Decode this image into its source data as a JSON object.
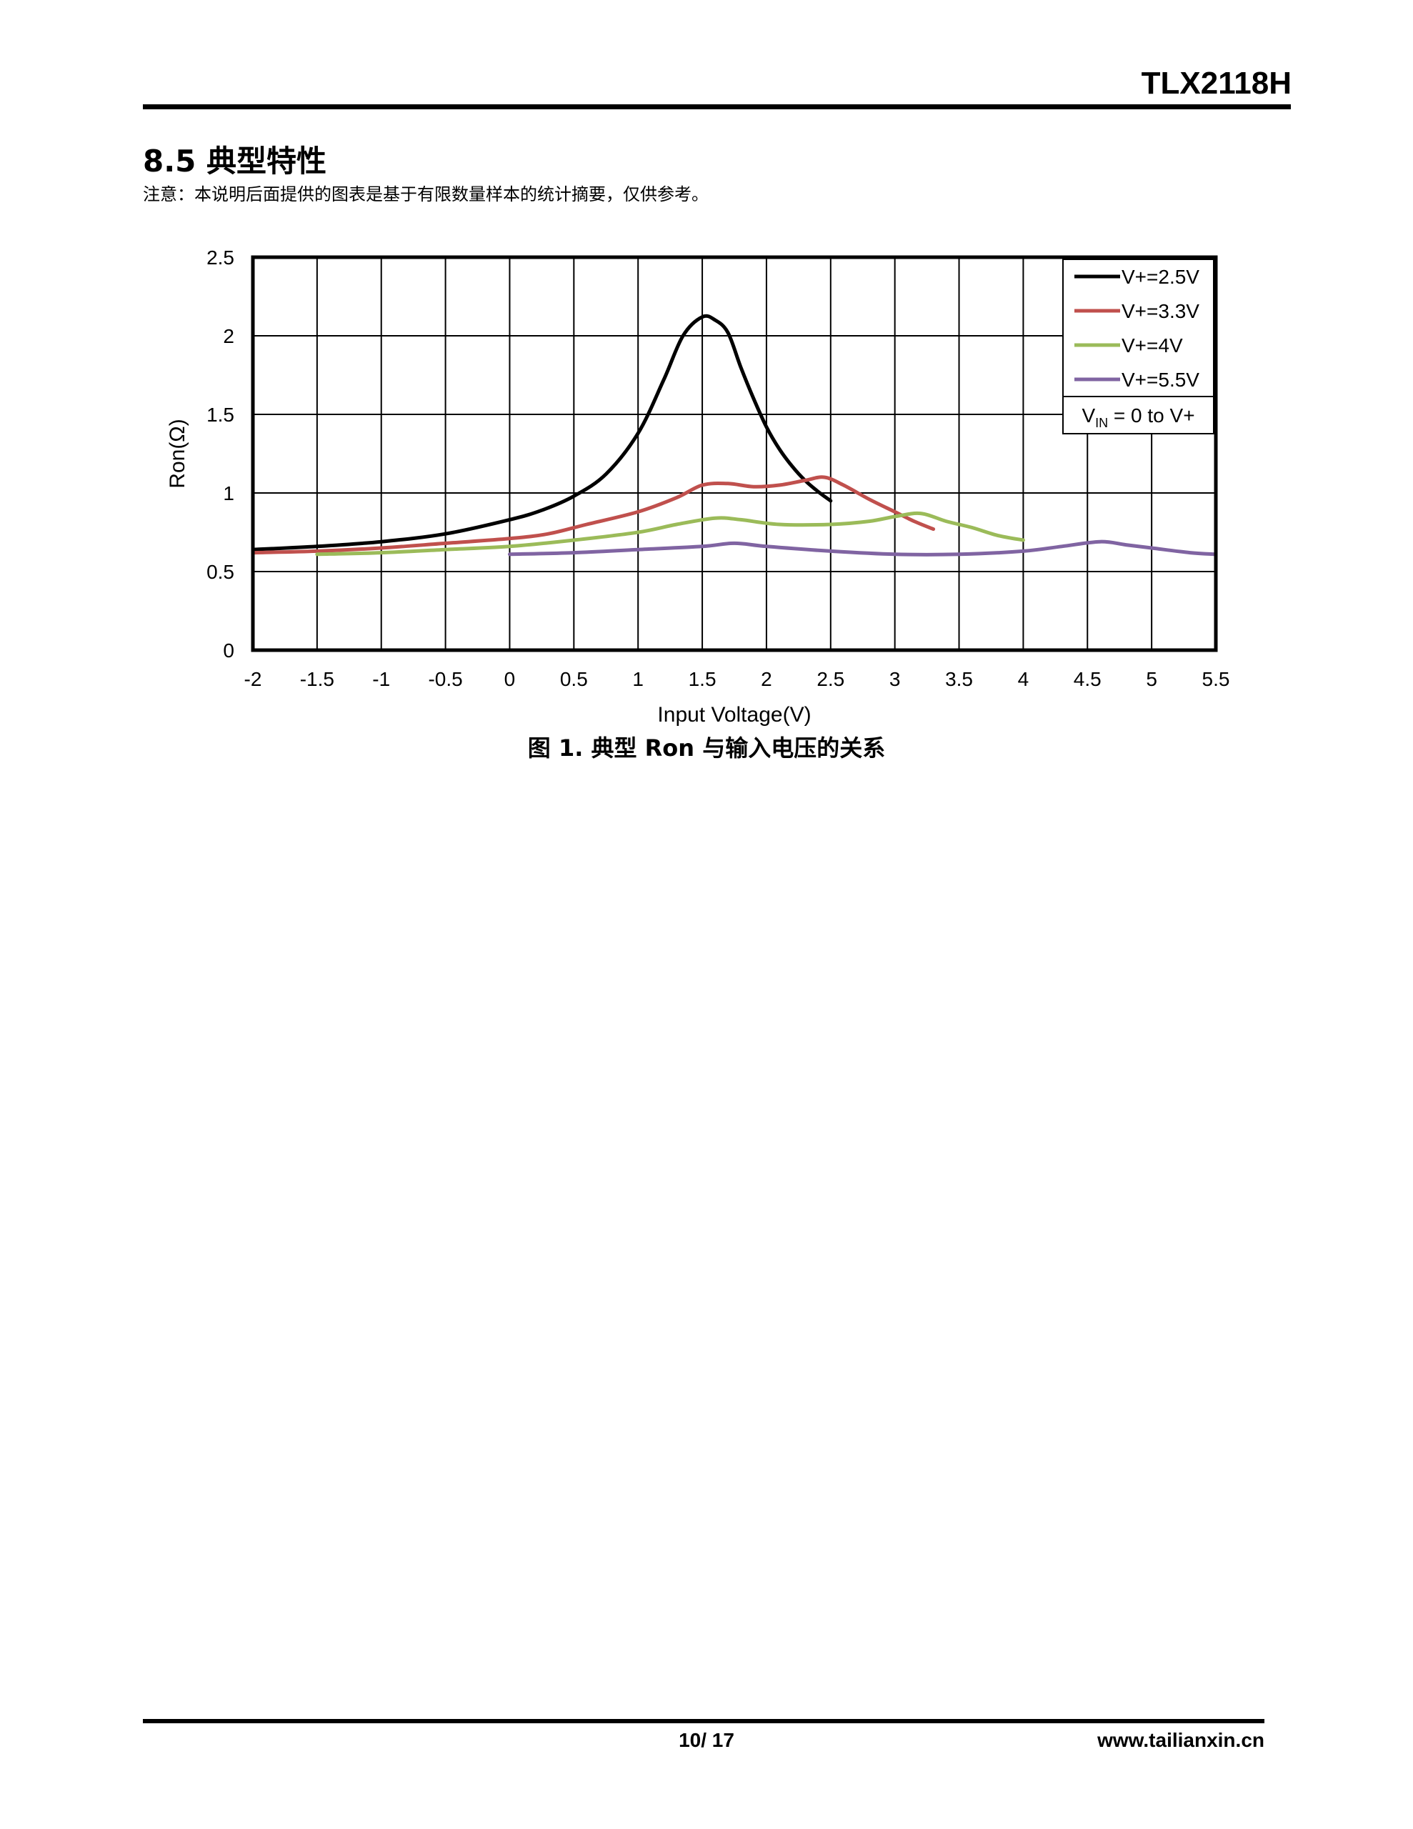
{
  "header": {
    "doc_title": "TLX2118H"
  },
  "section": {
    "number": "8.5",
    "title": "典型特性",
    "note": "注意：本说明后面提供的图表是基于有限数量样本的统计摘要，仅供参考。"
  },
  "chart_data": {
    "type": "line",
    "xlabel": "Input Voltage(V)",
    "ylabel": "Ron(Ω)",
    "xlim": [
      -2,
      5.5
    ],
    "ylim": [
      0,
      2.5
    ],
    "xticks": [
      "-2",
      "-1.5",
      "-1",
      "-0.5",
      "0",
      "0.5",
      "1",
      "1.5",
      "2",
      "2.5",
      "3",
      "3.5",
      "4",
      "4.5",
      "5",
      "5.5"
    ],
    "yticks": [
      "0",
      "0.5",
      "1",
      "1.5",
      "2",
      "2.5"
    ],
    "grid": true,
    "legend_position": "top-right",
    "annotation": {
      "main": "V",
      "sub": "IN",
      "rest": " = 0 to V+"
    },
    "series": [
      {
        "name": "V+=2.5V",
        "color": "#000000",
        "points": [
          [
            -2,
            0.64
          ],
          [
            -1.5,
            0.66
          ],
          [
            -1,
            0.69
          ],
          [
            -0.5,
            0.74
          ],
          [
            0,
            0.83
          ],
          [
            0.25,
            0.89
          ],
          [
            0.5,
            0.98
          ],
          [
            0.75,
            1.12
          ],
          [
            1,
            1.38
          ],
          [
            1.2,
            1.72
          ],
          [
            1.35,
            2.0
          ],
          [
            1.5,
            2.12
          ],
          [
            1.6,
            2.1
          ],
          [
            1.7,
            2.02
          ],
          [
            1.8,
            1.8
          ],
          [
            1.9,
            1.6
          ],
          [
            2.0,
            1.42
          ],
          [
            2.1,
            1.28
          ],
          [
            2.2,
            1.17
          ],
          [
            2.3,
            1.08
          ],
          [
            2.4,
            1.01
          ],
          [
            2.5,
            0.95
          ]
        ]
      },
      {
        "name": "V+=3.3V",
        "color": "#c0504d",
        "points": [
          [
            -2,
            0.62
          ],
          [
            -1.5,
            0.63
          ],
          [
            -1,
            0.65
          ],
          [
            -0.5,
            0.68
          ],
          [
            0,
            0.71
          ],
          [
            0.3,
            0.74
          ],
          [
            0.6,
            0.8
          ],
          [
            1,
            0.88
          ],
          [
            1.3,
            0.97
          ],
          [
            1.5,
            1.05
          ],
          [
            1.7,
            1.06
          ],
          [
            1.9,
            1.04
          ],
          [
            2.1,
            1.05
          ],
          [
            2.3,
            1.08
          ],
          [
            2.45,
            1.1
          ],
          [
            2.6,
            1.05
          ],
          [
            2.8,
            0.96
          ],
          [
            3.0,
            0.88
          ],
          [
            3.15,
            0.82
          ],
          [
            3.3,
            0.77
          ]
        ]
      },
      {
        "name": "V+=4V",
        "color": "#9bbb59",
        "points": [
          [
            -1.5,
            0.61
          ],
          [
            -1,
            0.62
          ],
          [
            -0.5,
            0.64
          ],
          [
            0,
            0.66
          ],
          [
            0.5,
            0.7
          ],
          [
            1,
            0.75
          ],
          [
            1.3,
            0.8
          ],
          [
            1.6,
            0.84
          ],
          [
            1.8,
            0.83
          ],
          [
            2.1,
            0.8
          ],
          [
            2.5,
            0.8
          ],
          [
            2.8,
            0.82
          ],
          [
            3.0,
            0.85
          ],
          [
            3.2,
            0.87
          ],
          [
            3.4,
            0.82
          ],
          [
            3.6,
            0.78
          ],
          [
            3.8,
            0.73
          ],
          [
            4.0,
            0.7
          ]
        ]
      },
      {
        "name": "V+=5.5V",
        "color": "#8064a2",
        "points": [
          [
            0,
            0.61
          ],
          [
            0.5,
            0.62
          ],
          [
            1,
            0.64
          ],
          [
            1.5,
            0.66
          ],
          [
            1.75,
            0.68
          ],
          [
            2.0,
            0.66
          ],
          [
            2.5,
            0.63
          ],
          [
            3.0,
            0.61
          ],
          [
            3.5,
            0.61
          ],
          [
            4.0,
            0.63
          ],
          [
            4.3,
            0.66
          ],
          [
            4.6,
            0.69
          ],
          [
            4.8,
            0.67
          ],
          [
            5.0,
            0.65
          ],
          [
            5.3,
            0.62
          ],
          [
            5.5,
            0.61
          ]
        ]
      }
    ]
  },
  "caption": {
    "prefix": "图",
    "num": "1.",
    "text_a": "典型",
    "ron": "Ron",
    "text_b": "与输入电压的关系"
  },
  "footer": {
    "page": "10/ 17",
    "site": "www.tailianxin.cn"
  }
}
